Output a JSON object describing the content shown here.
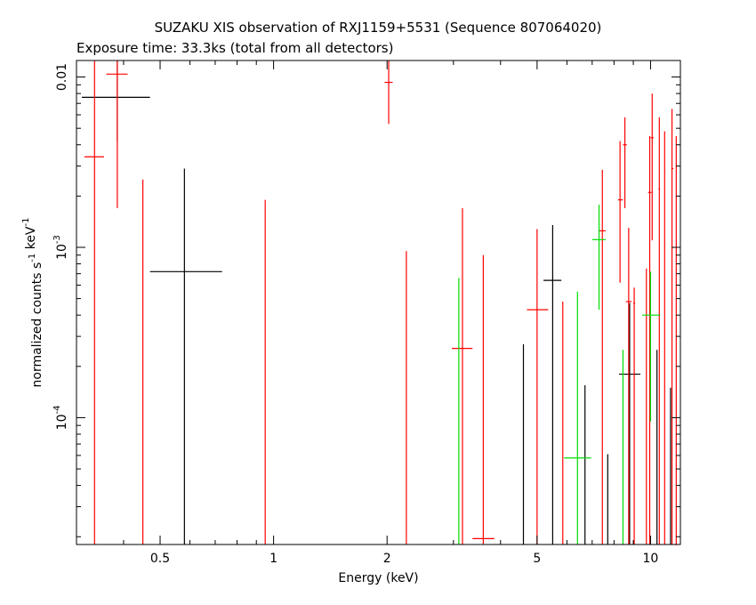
{
  "chart_data": {
    "type": "scatter",
    "title": "SUZAKU XIS observation of RXJ1159+5531 (Sequence 807064020)",
    "subtitle": "Exposure time: 33.3ks (total from all detectors)",
    "xlabel": "Energy (keV)",
    "ylabel": "normalized counts s^-1 keV^-1",
    "xscale": "log",
    "yscale": "log",
    "xlim": [
      0.3,
      12
    ],
    "ylim": [
      1.8e-05,
      0.0125
    ],
    "x_ticks": [
      {
        "value": 0.5,
        "label": "0.5"
      },
      {
        "value": 1,
        "label": "1"
      },
      {
        "value": 2,
        "label": "2"
      },
      {
        "value": 5,
        "label": "5"
      },
      {
        "value": 10,
        "label": "10"
      }
    ],
    "y_ticks": [
      {
        "value": 0.0001,
        "label": "10",
        "exp": "-4"
      },
      {
        "value": 0.001,
        "label": "10",
        "exp": "-3"
      },
      {
        "value": 0.01,
        "label": "0.01"
      }
    ],
    "series": [
      {
        "color": "#000000",
        "points": [
          {
            "x": 0.385,
            "xlo": 0.31,
            "xhi": 0.47,
            "y": 0.0076,
            "ylo": 0.0042,
            "yhi": 0.0125
          },
          {
            "x": 0.58,
            "xlo": 0.47,
            "xhi": 0.73,
            "y": 0.00072,
            "ylo": 1.8e-05,
            "yhi": 0.0029
          },
          {
            "x": 4.6,
            "xlo": 4.6,
            "xhi": 4.6,
            "y": 1.8e-05,
            "ylo": 1.8e-05,
            "yhi": 0.00027
          },
          {
            "x": 5.5,
            "xlo": 5.2,
            "xhi": 5.8,
            "y": 0.00064,
            "ylo": 1.8e-05,
            "yhi": 0.00135
          },
          {
            "x": 6.7,
            "xlo": 6.7,
            "xhi": 6.7,
            "y": 1.8e-05,
            "ylo": 1.8e-05,
            "yhi": 0.000155
          },
          {
            "x": 7.7,
            "xlo": 7.7,
            "xhi": 7.7,
            "y": 1.8e-05,
            "ylo": 1.8e-05,
            "yhi": 6.1e-05
          },
          {
            "x": 8.8,
            "xlo": 8.25,
            "xhi": 9.4,
            "y": 0.00018,
            "ylo": 1.8e-05,
            "yhi": 0.00047
          },
          {
            "x": 10.4,
            "xlo": 10.4,
            "xhi": 10.4,
            "y": 1.8e-05,
            "ylo": 1.8e-05,
            "yhi": 0.00025
          },
          {
            "x": 11.3,
            "xlo": 11.3,
            "xhi": 11.3,
            "y": 1.8e-05,
            "ylo": 1.8e-05,
            "yhi": 0.00015
          }
        ]
      },
      {
        "color": "#ff0000",
        "points": [
          {
            "x": 0.335,
            "xlo": 0.315,
            "xhi": 0.355,
            "y": 0.0034,
            "ylo": 1.8e-05,
            "yhi": 0.0125
          },
          {
            "x": 0.385,
            "xlo": 0.36,
            "xhi": 0.41,
            "y": 0.0104,
            "ylo": 0.0017,
            "yhi": 0.0125
          },
          {
            "x": 0.45,
            "xlo": 0.45,
            "xhi": 0.45,
            "y": 1.8e-05,
            "ylo": 1.8e-05,
            "yhi": 0.0025
          },
          {
            "x": 0.95,
            "xlo": 0.95,
            "xhi": 0.95,
            "y": 1.8e-05,
            "ylo": 1.8e-05,
            "yhi": 0.0019
          },
          {
            "x": 2.02,
            "xlo": 1.97,
            "xhi": 2.07,
            "y": 0.0093,
            "ylo": 0.0053,
            "yhi": 0.0125
          },
          {
            "x": 2.25,
            "xlo": 2.25,
            "xhi": 2.25,
            "y": 1.8e-05,
            "ylo": 1.8e-05,
            "yhi": 0.00095
          },
          {
            "x": 3.17,
            "xlo": 2.97,
            "xhi": 3.37,
            "y": 0.000255,
            "ylo": 1.8e-05,
            "yhi": 0.0017
          },
          {
            "x": 3.6,
            "xlo": 3.37,
            "xhi": 3.85,
            "y": 1.95e-05,
            "ylo": 1.8e-05,
            "yhi": 0.0009
          },
          {
            "x": 5.0,
            "xlo": 4.7,
            "xhi": 5.35,
            "y": 0.00043,
            "ylo": 1.8e-05,
            "yhi": 0.00128
          },
          {
            "x": 5.85,
            "xlo": 5.85,
            "xhi": 5.85,
            "y": 1.8e-05,
            "ylo": 1.8e-05,
            "yhi": 0.00048
          },
          {
            "x": 7.45,
            "xlo": 7.3,
            "xhi": 7.6,
            "y": 0.00125,
            "ylo": 1.8e-05,
            "yhi": 0.00285
          },
          {
            "x": 8.3,
            "xlo": 8.2,
            "xhi": 8.45,
            "y": 0.0019,
            "ylo": 0.00062,
            "yhi": 0.0042
          },
          {
            "x": 8.55,
            "xlo": 8.45,
            "xhi": 8.65,
            "y": 0.004,
            "ylo": 0.0017,
            "yhi": 0.0058
          },
          {
            "x": 8.75,
            "xlo": 8.6,
            "xhi": 8.9,
            "y": 0.00048,
            "ylo": 1.8e-05,
            "yhi": 0.0013
          },
          {
            "x": 9.05,
            "xlo": 9.0,
            "xhi": 9.1,
            "y": 0.00047,
            "ylo": 1.8e-05,
            "yhi": 0.00058
          },
          {
            "x": 9.75,
            "xlo": 9.75,
            "xhi": 9.75,
            "y": 1.8e-05,
            "ylo": 1.8e-05,
            "yhi": 0.00075
          },
          {
            "x": 9.95,
            "xlo": 9.85,
            "xhi": 10.05,
            "y": 0.0021,
            "ylo": 1.8e-05,
            "yhi": 0.0045
          },
          {
            "x": 10.1,
            "xlo": 10.0,
            "xhi": 10.2,
            "y": 0.0044,
            "ylo": 0.0011,
            "yhi": 0.008
          },
          {
            "x": 10.55,
            "xlo": 10.5,
            "xhi": 10.6,
            "y": 0.0022,
            "ylo": 1.8e-05,
            "yhi": 0.0058
          },
          {
            "x": 10.9,
            "xlo": 10.9,
            "xhi": 10.9,
            "y": 1.8e-05,
            "ylo": 1.8e-05,
            "yhi": 0.0048
          },
          {
            "x": 11.4,
            "xlo": 11.35,
            "xhi": 11.5,
            "y": 0.0029,
            "ylo": 1.8e-05,
            "yhi": 0.0065
          },
          {
            "x": 11.7,
            "xlo": 11.6,
            "xhi": 11.8,
            "y": 1.8e-05,
            "ylo": 1.8e-05,
            "yhi": 0.0045
          }
        ]
      },
      {
        "color": "#00dd00",
        "points": [
          {
            "x": 3.1,
            "xlo": 3.1,
            "xhi": 3.1,
            "y": 1.8e-05,
            "ylo": 1.8e-05,
            "yhi": 0.00066
          },
          {
            "x": 6.4,
            "xlo": 5.9,
            "xhi": 6.95,
            "y": 5.8e-05,
            "ylo": 1.8e-05,
            "yhi": 0.00055
          },
          {
            "x": 7.3,
            "xlo": 7.0,
            "xhi": 7.6,
            "y": 0.00111,
            "ylo": 0.00043,
            "yhi": 0.00178
          },
          {
            "x": 8.45,
            "xlo": 8.45,
            "xhi": 8.45,
            "y": 1.8e-05,
            "ylo": 1.8e-05,
            "yhi": 0.00025
          },
          {
            "x": 10.0,
            "xlo": 9.5,
            "xhi": 10.6,
            "y": 0.0004,
            "ylo": 9.5e-05,
            "yhi": 0.00072
          }
        ]
      }
    ]
  }
}
